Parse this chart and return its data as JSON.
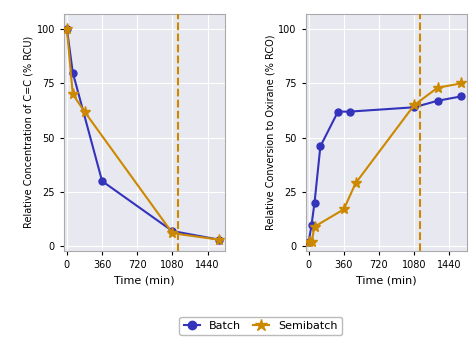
{
  "left_batch_x": [
    0,
    60,
    360,
    1080,
    1560
  ],
  "left_batch_y": [
    100,
    80,
    30,
    7,
    3
  ],
  "left_semi_x": [
    0,
    60,
    180,
    1080,
    1560
  ],
  "left_semi_y": [
    100,
    70,
    62,
    6,
    3
  ],
  "right_batch_x": [
    0,
    30,
    60,
    120,
    300,
    420,
    1080,
    1320,
    1560
  ],
  "right_batch_y": [
    2,
    10,
    20,
    46,
    62,
    62,
    64,
    67,
    69
  ],
  "right_semi_x": [
    0,
    30,
    60,
    360,
    480,
    1080,
    1320,
    1560
  ],
  "right_semi_y": [
    2,
    2,
    9,
    17,
    29,
    65,
    73,
    75
  ],
  "vline_x": 1140,
  "batch_color": "#3333bb",
  "semi_color": "#cc8800",
  "batch_marker": "o",
  "semi_marker": "*",
  "left_ylabel": "Relative Concentration of C=C (% RCU)",
  "right_ylabel": "Relative Conversion to Oxirane (% RCO)",
  "xlabel": "Time (min)",
  "left_ylim": [
    -2,
    107
  ],
  "right_ylim": [
    -2,
    107
  ],
  "xlim": [
    -30,
    1620
  ],
  "xticks": [
    0,
    360,
    720,
    1080,
    1440
  ],
  "yticks": [
    0,
    25,
    50,
    75,
    100
  ],
  "legend_labels": [
    "Batch",
    "Semibatch"
  ],
  "background_color": "#e8e8f0",
  "grid_color": "white",
  "vline_color": "#cc8800",
  "vline_style": "--",
  "markersize_batch": 5,
  "markersize_semi": 8,
  "linewidth": 1.5,
  "spine_color": "#aaaaaa",
  "tick_labelsize": 7,
  "ylabel_fontsize": 7,
  "xlabel_fontsize": 8,
  "legend_fontsize": 8
}
